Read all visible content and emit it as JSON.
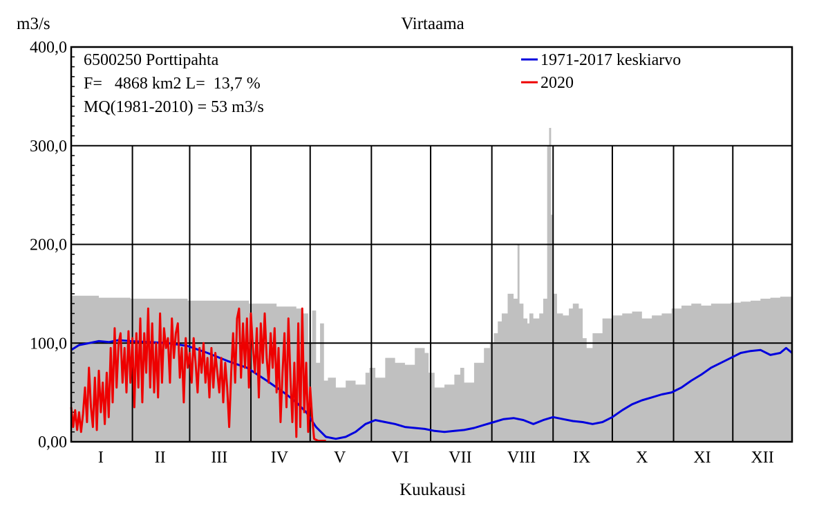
{
  "chart_data": {
    "type": "area",
    "title": "Virtaama",
    "ylabel": "m3/s",
    "xlabel": "Kuukausi",
    "ylim": [
      0,
      400
    ],
    "y_ticks": [
      0,
      100,
      200,
      300,
      400
    ],
    "y_tick_labels": [
      "0,00",
      "100,0",
      "200,0",
      "300,0",
      "400,0"
    ],
    "categories": [
      "I",
      "II",
      "III",
      "IV",
      "V",
      "VI",
      "VII",
      "VIII",
      "IX",
      "X",
      "XI",
      "XII"
    ],
    "month_lengths": [
      31,
      29,
      31,
      30,
      31,
      30,
      31,
      31,
      30,
      31,
      30,
      31
    ],
    "grid": true,
    "info_lines": [
      "6500250 Porttipahta",
      "F=   4868 km2 L=  13,7 %",
      "MQ(1981-2010) = 53 m3/s"
    ],
    "legend_position": "top-right",
    "series": [
      {
        "name": "",
        "kind": "range-band",
        "color": "#c0c0c0",
        "x": [
          1,
          15,
          31,
          60,
          91,
          105,
          115,
          118,
          121,
          123,
          125,
          127,
          129,
          131,
          135,
          140,
          145,
          150,
          152,
          155,
          160,
          165,
          170,
          175,
          180,
          182,
          185,
          190,
          195,
          198,
          200,
          205,
          210,
          213,
          215,
          217,
          219,
          222,
          225,
          227,
          228,
          230,
          232,
          233,
          235,
          238,
          240,
          242,
          243,
          244,
          245,
          247,
          250,
          253,
          255,
          258,
          260,
          262,
          265,
          270,
          275,
          280,
          285,
          290,
          295,
          300,
          305,
          310,
          315,
          320,
          325,
          330,
          335,
          340,
          345,
          350,
          355,
          360,
          366
        ],
        "y": [
          148,
          146,
          145,
          143,
          140,
          137,
          135,
          130,
          100,
          133,
          80,
          120,
          62,
          65,
          55,
          62,
          58,
          70,
          75,
          65,
          85,
          80,
          78,
          95,
          90,
          70,
          55,
          58,
          68,
          75,
          60,
          80,
          95,
          100,
          110,
          122,
          130,
          150,
          145,
          200,
          140,
          125,
          120,
          130,
          125,
          130,
          145,
          300,
          318,
          230,
          150,
          130,
          128,
          135,
          140,
          135,
          105,
          95,
          110,
          125,
          128,
          130,
          132,
          125,
          128,
          130,
          135,
          138,
          140,
          138,
          140,
          140,
          141,
          142,
          143,
          145,
          146,
          147,
          148
        ]
      },
      {
        "name": "1971-2017 keskiarvo",
        "color": "#0000dd",
        "x": [
          1,
          5,
          10,
          15,
          20,
          25,
          31,
          40,
          50,
          60,
          70,
          80,
          90,
          100,
          105,
          110,
          115,
          120,
          125,
          130,
          135,
          140,
          145,
          150,
          155,
          160,
          165,
          170,
          175,
          180,
          185,
          190,
          195,
          200,
          205,
          210,
          215,
          220,
          225,
          230,
          235,
          240,
          245,
          250,
          255,
          260,
          265,
          270,
          275,
          280,
          285,
          290,
          295,
          300,
          305,
          310,
          315,
          320,
          325,
          330,
          335,
          340,
          345,
          350,
          355,
          360,
          363,
          366
        ],
        "y": [
          93,
          98,
          100,
          102,
          101,
          103,
          102,
          101,
          100,
          97,
          90,
          82,
          75,
          62,
          55,
          48,
          40,
          30,
          15,
          5,
          3,
          5,
          10,
          18,
          22,
          20,
          18,
          15,
          14,
          13,
          11,
          10,
          11,
          12,
          14,
          17,
          20,
          23,
          24,
          22,
          18,
          22,
          25,
          23,
          21,
          20,
          18,
          20,
          25,
          32,
          38,
          42,
          45,
          48,
          50,
          55,
          62,
          68,
          75,
          80,
          85,
          90,
          92,
          93,
          88,
          90,
          95,
          90
        ]
      },
      {
        "name": "2020",
        "color": "#ee0000",
        "x": [
          1,
          2,
          3,
          4,
          5,
          6,
          7,
          8,
          9,
          10,
          11,
          12,
          13,
          14,
          15,
          16,
          17,
          18,
          19,
          20,
          21,
          22,
          23,
          24,
          25,
          26,
          27,
          28,
          29,
          30,
          31,
          32,
          33,
          34,
          35,
          36,
          37,
          38,
          39,
          40,
          41,
          42,
          43,
          44,
          45,
          46,
          47,
          48,
          49,
          50,
          51,
          52,
          53,
          54,
          55,
          56,
          57,
          58,
          59,
          60,
          61,
          62,
          63,
          64,
          65,
          66,
          67,
          68,
          69,
          70,
          71,
          72,
          73,
          74,
          75,
          76,
          77,
          78,
          79,
          80,
          81,
          82,
          83,
          84,
          85,
          86,
          87,
          88,
          89,
          90,
          91,
          92,
          93,
          94,
          95,
          96,
          97,
          98,
          99,
          100,
          101,
          102,
          103,
          104,
          105,
          106,
          107,
          108,
          109,
          110,
          111,
          112,
          113,
          114,
          115,
          116,
          117,
          118,
          119,
          120,
          121,
          122,
          123,
          124,
          125,
          126,
          127,
          128,
          129,
          130
        ],
        "y": [
          35,
          15,
          32,
          12,
          30,
          10,
          28,
          55,
          20,
          75,
          35,
          15,
          65,
          12,
          72,
          30,
          60,
          18,
          70,
          25,
          95,
          40,
          115,
          55,
          100,
          110,
          60,
          95,
          50,
          112,
          60,
          105,
          35,
          110,
          55,
          125,
          40,
          110,
          70,
          135,
          55,
          120,
          50,
          100,
          45,
          130,
          60,
          115,
          95,
          105,
          60,
          125,
          85,
          110,
          120,
          65,
          95,
          40,
          105,
          75,
          90,
          60,
          105,
          80,
          50,
          95,
          70,
          100,
          60,
          85,
          45,
          95,
          55,
          90,
          70,
          50,
          85,
          40,
          80,
          55,
          15,
          70,
          110,
          60,
          125,
          135,
          65,
          120,
          75,
          125,
          55,
          130,
          95,
          70,
          115,
          45,
          120,
          80,
          130,
          85,
          60,
          110,
          75,
          115,
          50,
          95,
          20,
          70,
          110,
          35,
          125,
          65,
          20,
          80,
          5,
          120,
          15,
          135,
          30,
          80,
          10,
          55,
          25,
          3,
          2,
          1,
          1,
          1,
          1,
          1
        ]
      }
    ]
  }
}
